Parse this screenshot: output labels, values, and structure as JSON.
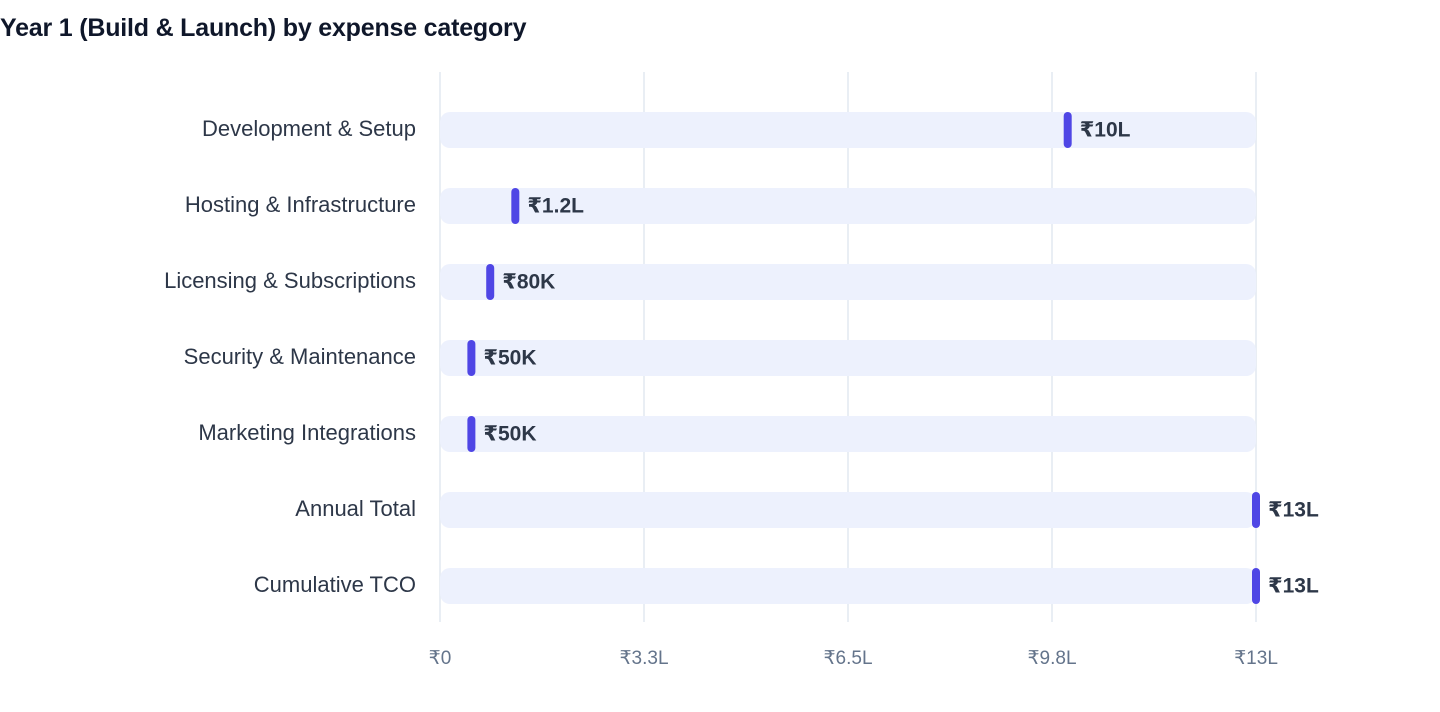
{
  "chart_data": {
    "type": "bar",
    "title": "Year 1 (Build & Launch) by expense category",
    "categories": [
      "Development & Setup",
      "Hosting & Infrastructure",
      "Licensing & Subscriptions",
      "Security & Maintenance",
      "Marketing Integrations",
      "Annual Total",
      "Cumulative TCO"
    ],
    "series": [
      {
        "values": [
          1000000,
          120000,
          80000,
          50000,
          50000,
          1300000,
          1300000
        ]
      }
    ],
    "value_labels": [
      "₹10L",
      "₹1.2L",
      "₹80K",
      "₹50K",
      "₹50K",
      "₹13L",
      "₹13L"
    ],
    "x_ticks": [
      0,
      325000,
      650000,
      975000,
      1300000
    ],
    "x_tick_labels": [
      "₹0",
      "₹3.3L",
      "₹6.5L",
      "₹9.8L",
      "₹13L"
    ],
    "xlim": [
      0,
      1300000
    ],
    "orientation": "horizontal",
    "grid": true,
    "colors": {
      "marker": "#4f46e5",
      "track": "#edf1fd",
      "grid": "#e2e8f0",
      "title": "#0f172a",
      "category_text": "#2d3748",
      "tick_text": "#64748b"
    }
  }
}
